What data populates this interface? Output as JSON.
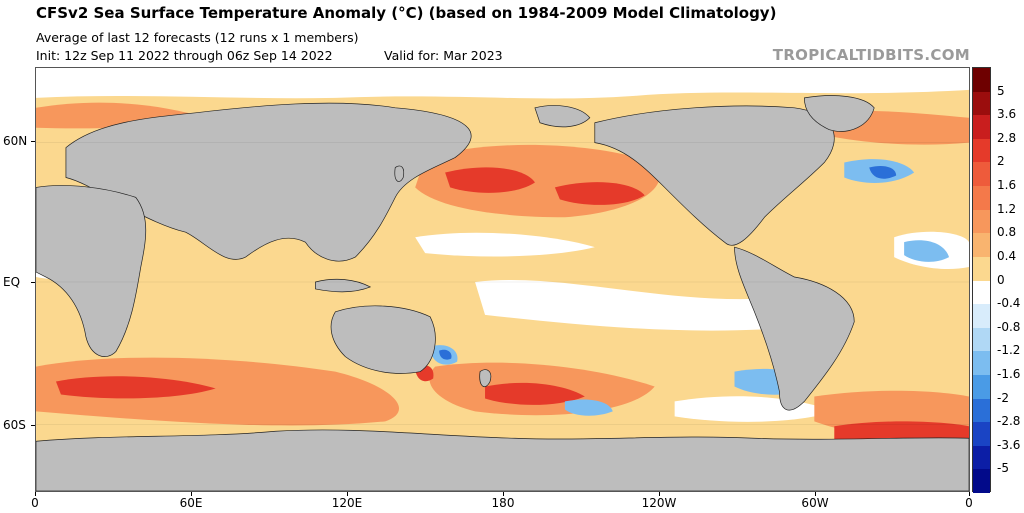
{
  "header": {
    "title": "CFSv2 Sea Surface Temperature Anomaly (°C) (based on 1984-2009 Model Climatology)",
    "subtitle": "Average of last 12 forecasts (12 runs x 1 members)",
    "init": "Init: 12z Sep 11 2022 through 06z Sep 14 2022",
    "valid": "Valid for: Mar 2023",
    "credit": "TROPICALTIDBITS.COM"
  },
  "map": {
    "latitude_labels": [
      "60N",
      "EQ",
      "60S"
    ],
    "longitude_labels": [
      "0",
      "60E",
      "120E",
      "180",
      "120W",
      "60W",
      "0"
    ],
    "colors": {
      "land": "#bdbdbd",
      "ice": "#ffffff",
      "neutral": "#ffffff"
    }
  },
  "colorbar": {
    "labels": [
      "5",
      "3.6",
      "2.8",
      "2",
      "1.6",
      "1.2",
      "0.8",
      "0.4",
      "0",
      "-0.4",
      "-0.8",
      "-1.2",
      "-1.6",
      "-2",
      "-2.8",
      "-3.6",
      "-5"
    ],
    "colors": [
      "#6e0000",
      "#9b0d0d",
      "#c91e1e",
      "#e53a2a",
      "#ee5b3b",
      "#f4794a",
      "#f7975c",
      "#f9b46f",
      "#fbd88f",
      "#ffffff",
      "#d8ecfb",
      "#b0d8f5",
      "#7cbdf0",
      "#4a9be6",
      "#2a6fd8",
      "#1a44c4",
      "#0c1ea6",
      "#020a8a"
    ]
  }
}
